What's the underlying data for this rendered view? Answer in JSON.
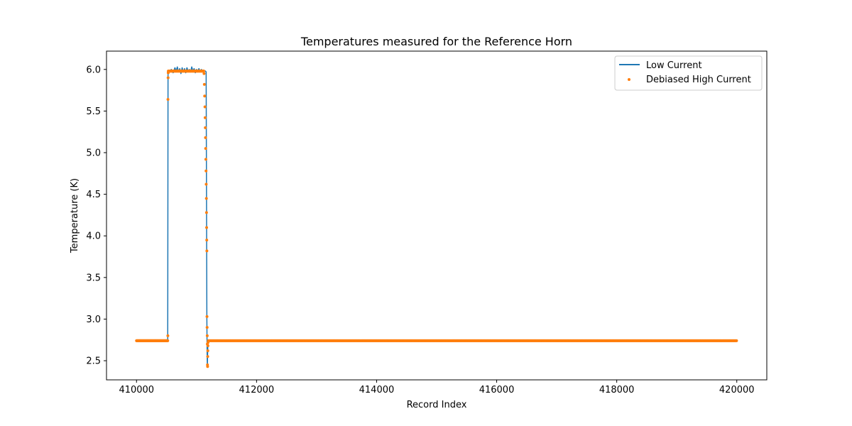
{
  "chart_data": {
    "type": "line",
    "title": "Temperatures measured for the Reference Horn",
    "xlabel": "Record Index",
    "ylabel": "Temperature (K)",
    "xlim": [
      409500,
      420500
    ],
    "ylim": [
      2.27,
      6.22
    ],
    "xticks": [
      410000,
      412000,
      414000,
      416000,
      418000,
      420000
    ],
    "xtick_labels": [
      "410000",
      "412000",
      "414000",
      "416000",
      "418000",
      "420000"
    ],
    "yticks": [
      2.5,
      3.0,
      3.5,
      4.0,
      4.5,
      5.0,
      5.5,
      6.0
    ],
    "ytick_labels": [
      "2.5",
      "3.0",
      "3.5",
      "4.0",
      "4.5",
      "5.0",
      "5.5",
      "6.0"
    ],
    "grid": false,
    "legend_position": "top-right",
    "colors": {
      "low": "#1f77b4",
      "high": "#ff7f0e"
    },
    "series": [
      {
        "name": "Low Current",
        "style": "line",
        "x": [
          410000,
          410200,
          410400,
          410520,
          410525,
          410535,
          410550,
          410580,
          410610,
          410640,
          410660,
          410680,
          410700,
          410720,
          410740,
          410760,
          410780,
          410800,
          410820,
          410840,
          410860,
          410880,
          410900,
          410920,
          410940,
          410960,
          410980,
          411000,
          411020,
          411040,
          411060,
          411080,
          411100,
          411120,
          411140,
          411150,
          411160,
          411168,
          411172,
          411176,
          411180,
          411185,
          411190,
          411200,
          411250,
          411400,
          412000,
          414000,
          416000,
          418000,
          420000
        ],
        "y": [
          2.74,
          2.74,
          2.74,
          2.74,
          5.97,
          5.99,
          5.98,
          6.0,
          5.96,
          6.02,
          5.98,
          6.03,
          5.97,
          6.01,
          5.95,
          6.02,
          5.97,
          6.01,
          5.96,
          6.02,
          5.98,
          6.0,
          5.97,
          6.03,
          5.98,
          6.01,
          5.96,
          6.0,
          5.98,
          6.01,
          5.97,
          6.0,
          5.98,
          5.99,
          5.98,
          5.98,
          5.97,
          4.0,
          3.0,
          2.6,
          2.42,
          2.6,
          2.72,
          2.74,
          2.74,
          2.74,
          2.74,
          2.74,
          2.74,
          2.74,
          2.74
        ]
      },
      {
        "name": "Debiased High Current",
        "style": "scatter",
        "x": [
          410522,
          410524,
          410526,
          410528,
          410530,
          411125,
          411130,
          411135,
          411140,
          411143,
          411146,
          411149,
          411152,
          411155,
          411158,
          411161,
          411164,
          411166,
          411168,
          411170,
          411172,
          411174,
          411176,
          411178,
          411180,
          411182,
          411184,
          411186,
          411188,
          411190,
          411192
        ],
        "y": [
          2.8,
          5.64,
          5.9,
          5.96,
          5.98,
          5.95,
          5.82,
          5.68,
          5.55,
          5.42,
          5.3,
          5.18,
          5.05,
          4.92,
          4.78,
          4.62,
          4.45,
          4.28,
          4.1,
          3.95,
          3.82,
          3.03,
          2.9,
          2.8,
          2.7,
          2.45,
          2.43,
          2.55,
          2.62,
          2.68,
          2.72
        ],
        "baseline_value": 2.74,
        "plateau_value": 5.98
      }
    ]
  }
}
